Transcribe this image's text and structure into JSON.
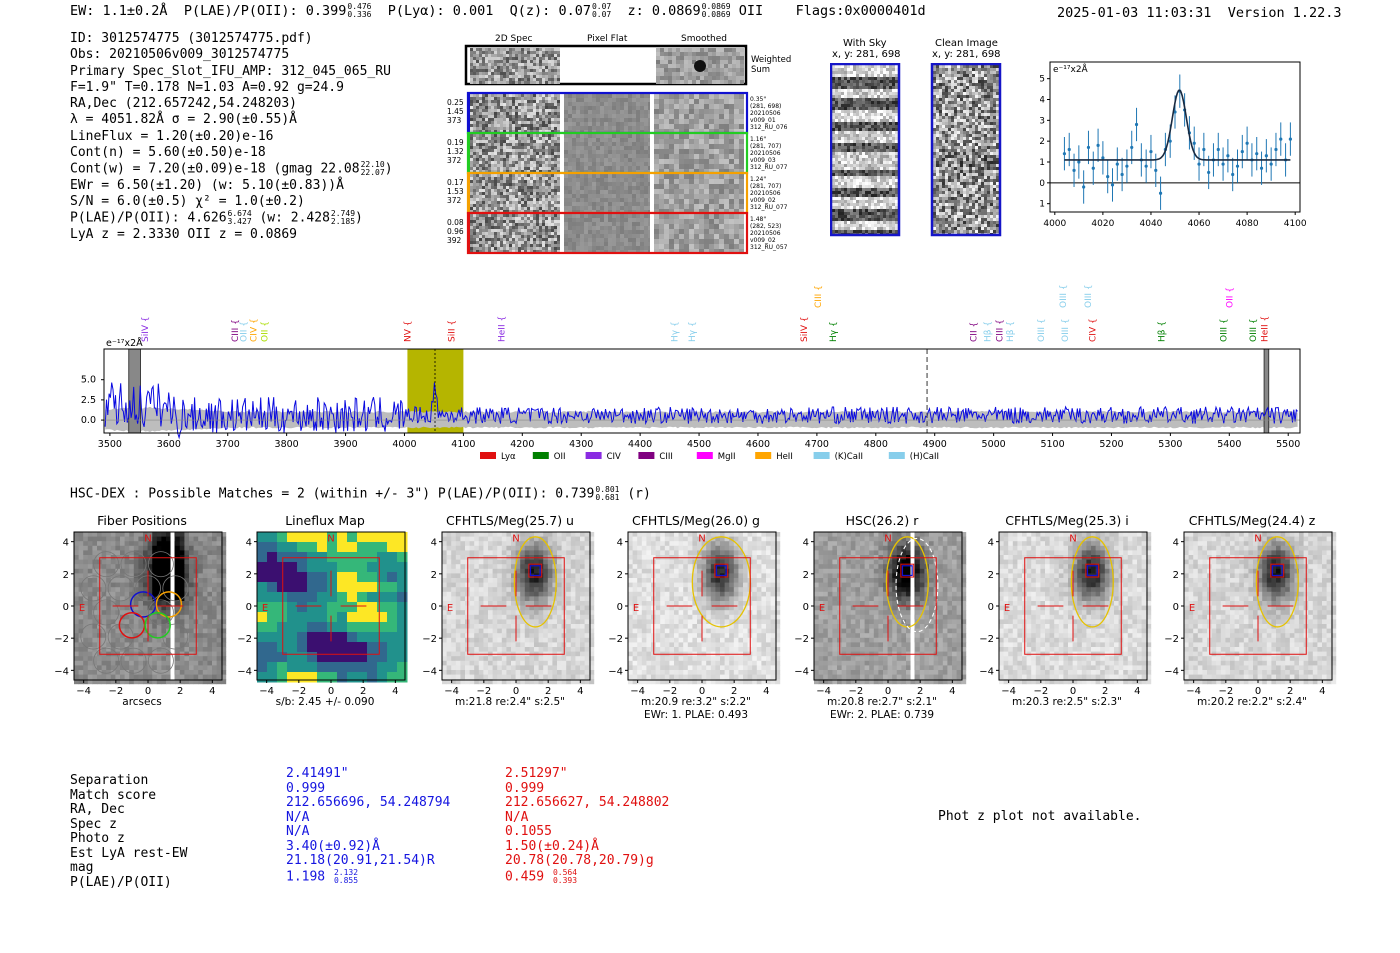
{
  "header": {
    "ew": "EW: 1.1±0.2Å",
    "plae_label": "P(LAE)/P(OII): 0.399",
    "plae_hi": "0.476",
    "plae_lo": "0.336",
    "plya": "P(Lyα): 0.001",
    "qz_label": "Q(z): 0.07",
    "qz_hi": "0.07",
    "qz_lo": "0.07",
    "z_label": "z: 0.0869",
    "z_hi": "0.0869",
    "z_lo": "0.0869",
    "z_line": "OII",
    "flags": "Flags:0x0000401d",
    "timestamp": "2025-01-03 11:03:31",
    "version": "Version 1.22.3"
  },
  "info": {
    "id": "ID: 3012574775 (3012574775.pdf)",
    "obs": "Obs: 20210506v009_3012574775",
    "primary": "Primary Spec_Slot_IFU_AMP: 312_045_065_RU",
    "fit": "F=1.9\"  T=0.178  N=1.03  A=0.92  g=24.9",
    "radec": "RA,Dec (212.657242,54.248203)",
    "lambda": "λ = 4051.82Å  σ = 2.90(±0.55)Å",
    "lineflux": "LineFlux = 1.20(±0.20)e-16",
    "contn": "Cont(n) = 5.60(±0.50)e-18",
    "contw": "Cont(w) = 7.20(±0.09)e-18 (gmag 22.08",
    "gmag_hi": "22.10",
    "gmag_lo": "22.07",
    "ewr": "EWr = 6.50(±1.20) (w: 5.10(±0.83))Å",
    "sn": "S/N = 6.0(±0.5)  χ² = 1.0(±0.2)",
    "plae": "P(LAE)/P(OII): 4.626",
    "plae_hi": "6.674",
    "plae_lo": "3.427",
    "plae_w": "(w: 2.428",
    "plae_w_hi": "2.749",
    "plae_w_lo": "2.185",
    "lyaz": "LyA z = 2.3330  OII z = 0.0869"
  },
  "cutouts": {
    "col_titles": [
      "2D Spec",
      "Pixel Flat",
      "Smoothed"
    ],
    "weighted_sum": "Weighted Sum",
    "rows": [
      {
        "left": [
          "0.25",
          "1.45",
          "373"
        ],
        "right": [
          "0.35\"",
          "(281, 698)",
          "20210506",
          "v009_01",
          "312_RU_076"
        ],
        "color": "#1010d0"
      },
      {
        "left": [
          "0.19",
          "1.32",
          "372"
        ],
        "right": [
          "1.16\"",
          "(281, 707)",
          "20210506",
          "v009_03",
          "312_RU_077"
        ],
        "color": "#22cc22"
      },
      {
        "left": [
          "0.17",
          "1.53",
          "372"
        ],
        "right": [
          "1.24\"",
          "(281, 707)",
          "20210506",
          "v009_02",
          "312_RU_077"
        ],
        "color": "#f5a000"
      },
      {
        "left": [
          "0.08",
          "0.96",
          "392"
        ],
        "right": [
          "1.48\"",
          "(282, 523)",
          "20210506",
          "v009_02",
          "312_RU_057"
        ],
        "color": "#e01010"
      }
    ],
    "with_sky": "With Sky",
    "with_sky_xy": "x, y: 281, 698",
    "clean": "Clean Image",
    "clean_xy": "x, y: 281, 698"
  },
  "chart_data": [
    {
      "type": "line",
      "name": "line-fit-zoom",
      "ylabel": "e⁻¹⁷x2Å",
      "xlim": [
        3998,
        4102
      ],
      "ylim": [
        -1.4,
        5.8
      ],
      "xticks": [
        4000,
        4020,
        4040,
        4060,
        4080,
        4100
      ],
      "yticks": [
        -1,
        0,
        1,
        2,
        3,
        4,
        5
      ],
      "data_x": [
        4004,
        4006,
        4008,
        4010,
        4012,
        4014,
        4016,
        4018,
        4020,
        4022,
        4024,
        4026,
        4028,
        4030,
        4032,
        4034,
        4036,
        4038,
        4040,
        4042,
        4044,
        4046,
        4048,
        4050,
        4052,
        4054,
        4056,
        4058,
        4060,
        4062,
        4064,
        4066,
        4068,
        4070,
        4072,
        4074,
        4076,
        4078,
        4080,
        4082,
        4084,
        4086,
        4088,
        4090,
        4092,
        4094,
        4096,
        4098
      ],
      "data_y": [
        1.4,
        1.6,
        0.6,
        1.0,
        -0.2,
        1.7,
        0.7,
        1.8,
        1.2,
        0.3,
        -0.1,
        0.9,
        0.4,
        0.8,
        1.7,
        2.8,
        1.1,
        0.8,
        1.5,
        0.6,
        -0.5,
        1.6,
        2.0,
        3.4,
        4.4,
        3.5,
        2.4,
        1.9,
        0.9,
        1.6,
        0.5,
        1.1,
        1.6,
        0.9,
        1.3,
        0.4,
        0.8,
        1.5,
        1.9,
        1.1,
        1.4,
        0.7,
        1.3,
        0.9,
        1.6,
        2.1,
        1.1,
        2.1
      ],
      "data_err": 0.8,
      "fit": {
        "continuum": 1.1,
        "amplitude": 3.35,
        "center": 4051.82,
        "sigma": 2.9
      }
    },
    {
      "type": "line",
      "name": "full-spectrum",
      "ylabel": "e⁻¹⁷x2Å",
      "xlim": [
        3490,
        5520
      ],
      "ylim": [
        -1.6,
        8.8
      ],
      "xticks": [
        3500,
        3600,
        3700,
        3800,
        3900,
        4000,
        4100,
        4200,
        4300,
        4400,
        4500,
        4600,
        4700,
        4800,
        4900,
        5000,
        5100,
        5200,
        5300,
        5400,
        5500
      ],
      "yticks": [
        0.0,
        2.5,
        5.0
      ],
      "highlight": [
        4005,
        4100
      ],
      "line_center": 4051.82,
      "dashed_marker": 4887,
      "masked_regions": [
        [
          3532,
          3552
        ],
        [
          5459,
          5467
        ]
      ],
      "legend": [
        "Lyα",
        "OII",
        "CIV",
        "CIII",
        "MgII",
        "HeII",
        "(K)CaII",
        "(H)CaII"
      ],
      "legend_colors": [
        "#e01010",
        "#008000",
        "#8a2be2",
        "#800080",
        "#ff00ff",
        "#ffa500",
        "#87ceeb",
        "#87ceeb"
      ],
      "line_labels": [
        {
          "label": "SiIV",
          "x": 3560,
          "color": "#8a2be2",
          "high": false
        },
        {
          "label": "CIII",
          "x": 3712,
          "color": "#800080",
          "high": false
        },
        {
          "label": "OII",
          "x": 3727,
          "color": "#87ceeb",
          "high": false
        },
        {
          "label": "CIV",
          "x": 3744,
          "color": "#ffa500",
          "high": false
        },
        {
          "label": "OII",
          "x": 3762,
          "color": "#aadd00",
          "high": false
        },
        {
          "label": "NV",
          "x": 4005,
          "color": "#e01010",
          "high": false
        },
        {
          "label": "SiII",
          "x": 4080,
          "color": "#e01010",
          "high": false
        },
        {
          "label": "HeII",
          "x": 4165,
          "color": "#8a2be2",
          "high": false
        },
        {
          "label": "Hγ",
          "x": 4458,
          "color": "#87ceeb",
          "high": false
        },
        {
          "label": "Hγ",
          "x": 4488,
          "color": "#87ceeb",
          "high": false
        },
        {
          "label": "SiIV",
          "x": 4678,
          "color": "#e01010",
          "high": false
        },
        {
          "label": "CIII",
          "x": 4702,
          "color": "#ffa500",
          "high": true
        },
        {
          "label": "Hγ",
          "x": 4727,
          "color": "#008000",
          "high": false
        },
        {
          "label": "CII",
          "x": 4966,
          "color": "#800080",
          "high": false
        },
        {
          "label": "Hβ",
          "x": 4990,
          "color": "#87ceeb",
          "high": false
        },
        {
          "label": "CIII",
          "x": 5010,
          "color": "#800080",
          "high": false
        },
        {
          "label": "Hβ",
          "x": 5028,
          "color": "#87ceeb",
          "high": false
        },
        {
          "label": "OIII",
          "x": 5080,
          "color": "#87ceeb",
          "high": false
        },
        {
          "label": "OIII",
          "x": 5118,
          "color": "#87ceeb",
          "high": true
        },
        {
          "label": "OIII",
          "x": 5121,
          "color": "#87ceeb",
          "high": false
        },
        {
          "label": "OIII",
          "x": 5160,
          "color": "#87ceeb",
          "high": true
        },
        {
          "label": "CIV",
          "x": 5168,
          "color": "#e01010",
          "high": false
        },
        {
          "label": "Hβ",
          "x": 5285,
          "color": "#008000",
          "high": false
        },
        {
          "label": "OIII",
          "x": 5390,
          "color": "#008000",
          "high": false
        },
        {
          "label": "OII",
          "x": 5400,
          "color": "#ff00ff",
          "high": true
        },
        {
          "label": "OIII",
          "x": 5440,
          "color": "#008000",
          "high": false
        },
        {
          "label": "HeII",
          "x": 5460,
          "color": "#e01010",
          "high": false
        }
      ]
    }
  ],
  "hsc": {
    "title": "HSC-DEX : Possible Matches = 2 (within +/- 3\")  P(LAE)/P(OII): 0.739",
    "plae_hi": "0.801",
    "plae_lo": "0.681",
    "band": "(r)",
    "panels": [
      {
        "title": "Fiber Positions",
        "cap1": "arcsecs",
        "cap2": ""
      },
      {
        "title": "Lineflux Map",
        "cap1": "s/b: 2.45 +/- 0.090",
        "cap2": ""
      },
      {
        "title": "CFHTLS/Meg(25.7) u",
        "cap1": "m:21.8  re:2.4\"  s:2.5\"",
        "cap2": ""
      },
      {
        "title": "CFHTLS/Meg(26.0) g",
        "cap1": "m:20.9  re:3.2\"  s:2.2\"",
        "cap2": "EWr: 1. PLAE: 0.493"
      },
      {
        "title": "HSC(26.2) r",
        "cap1": "m:20.8  re:2.7\"  s:2.1\"",
        "cap2": "EWr: 2. PLAE: 0.739"
      },
      {
        "title": "CFHTLS/Meg(25.3) i",
        "cap1": "m:20.3  re:2.5\"  s:2.3\"",
        "cap2": ""
      },
      {
        "title": "CFHTLS/Meg(24.4) z",
        "cap1": "m:20.2  re:2.2\"  s:2.4\"",
        "cap2": ""
      }
    ],
    "axis_ticks": [
      "−4",
      "−2",
      "0",
      "2",
      "4"
    ],
    "n_label": "N",
    "e_label": "E"
  },
  "matches": {
    "labels": [
      "Separation",
      "Match score",
      "RA, Dec",
      "Spec z",
      "Photo z",
      "Est LyA rest-EW",
      "mag",
      "P(LAE)/P(OII)"
    ],
    "m1": [
      "2.41491\"",
      "0.999",
      "212.656696, 54.248794",
      "N/A",
      "N/A",
      "3.40(±0.92)Å",
      "21.18(20.91,21.54)R",
      "1.198"
    ],
    "m1_plae_hi": "2.132",
    "m1_plae_lo": "0.855",
    "m2": [
      "2.51297\"",
      "0.999",
      "212.656627, 54.248802",
      "N/A",
      "0.1055",
      "1.50(±0.24)Å",
      "20.78(20.78,20.79)g",
      "0.459"
    ],
    "m2_plae_hi": "0.564",
    "m2_plae_lo": "0.393",
    "photz_note": "Phot z plot not available."
  }
}
